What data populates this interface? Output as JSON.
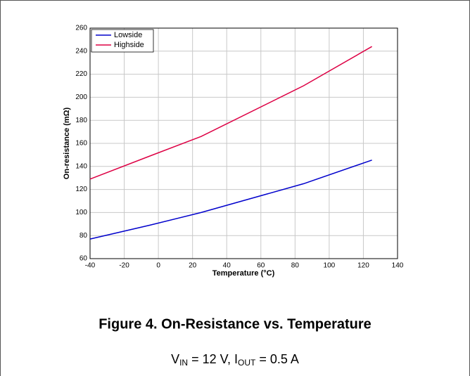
{
  "chart_data": {
    "type": "line",
    "title": "Figure 4. On-Resistance vs. Temperature",
    "subtitle_parts": [
      "V",
      "IN",
      " = 12 V, I",
      "OUT",
      " = 0.5 A"
    ],
    "xlabel": "Temperature (°C)",
    "ylabel": "On-resistance (mΩ)",
    "x": [
      -40,
      -5,
      25,
      85,
      125
    ],
    "series": [
      {
        "name": "Lowside",
        "color": "#0000cc",
        "values": [
          77,
          89,
          100,
          125,
          145.5
        ]
      },
      {
        "name": "Highside",
        "color": "#dd0044",
        "values": [
          129,
          149,
          166,
          210,
          244
        ]
      }
    ],
    "xlim": [
      -40,
      140
    ],
    "xticks": [
      -40,
      -20,
      0,
      20,
      40,
      60,
      80,
      100,
      120,
      140
    ],
    "ylim": [
      60,
      260
    ],
    "yticks": [
      60,
      80,
      100,
      120,
      140,
      160,
      180,
      200,
      220,
      240,
      260
    ],
    "grid": true,
    "legend": "upper-left"
  }
}
